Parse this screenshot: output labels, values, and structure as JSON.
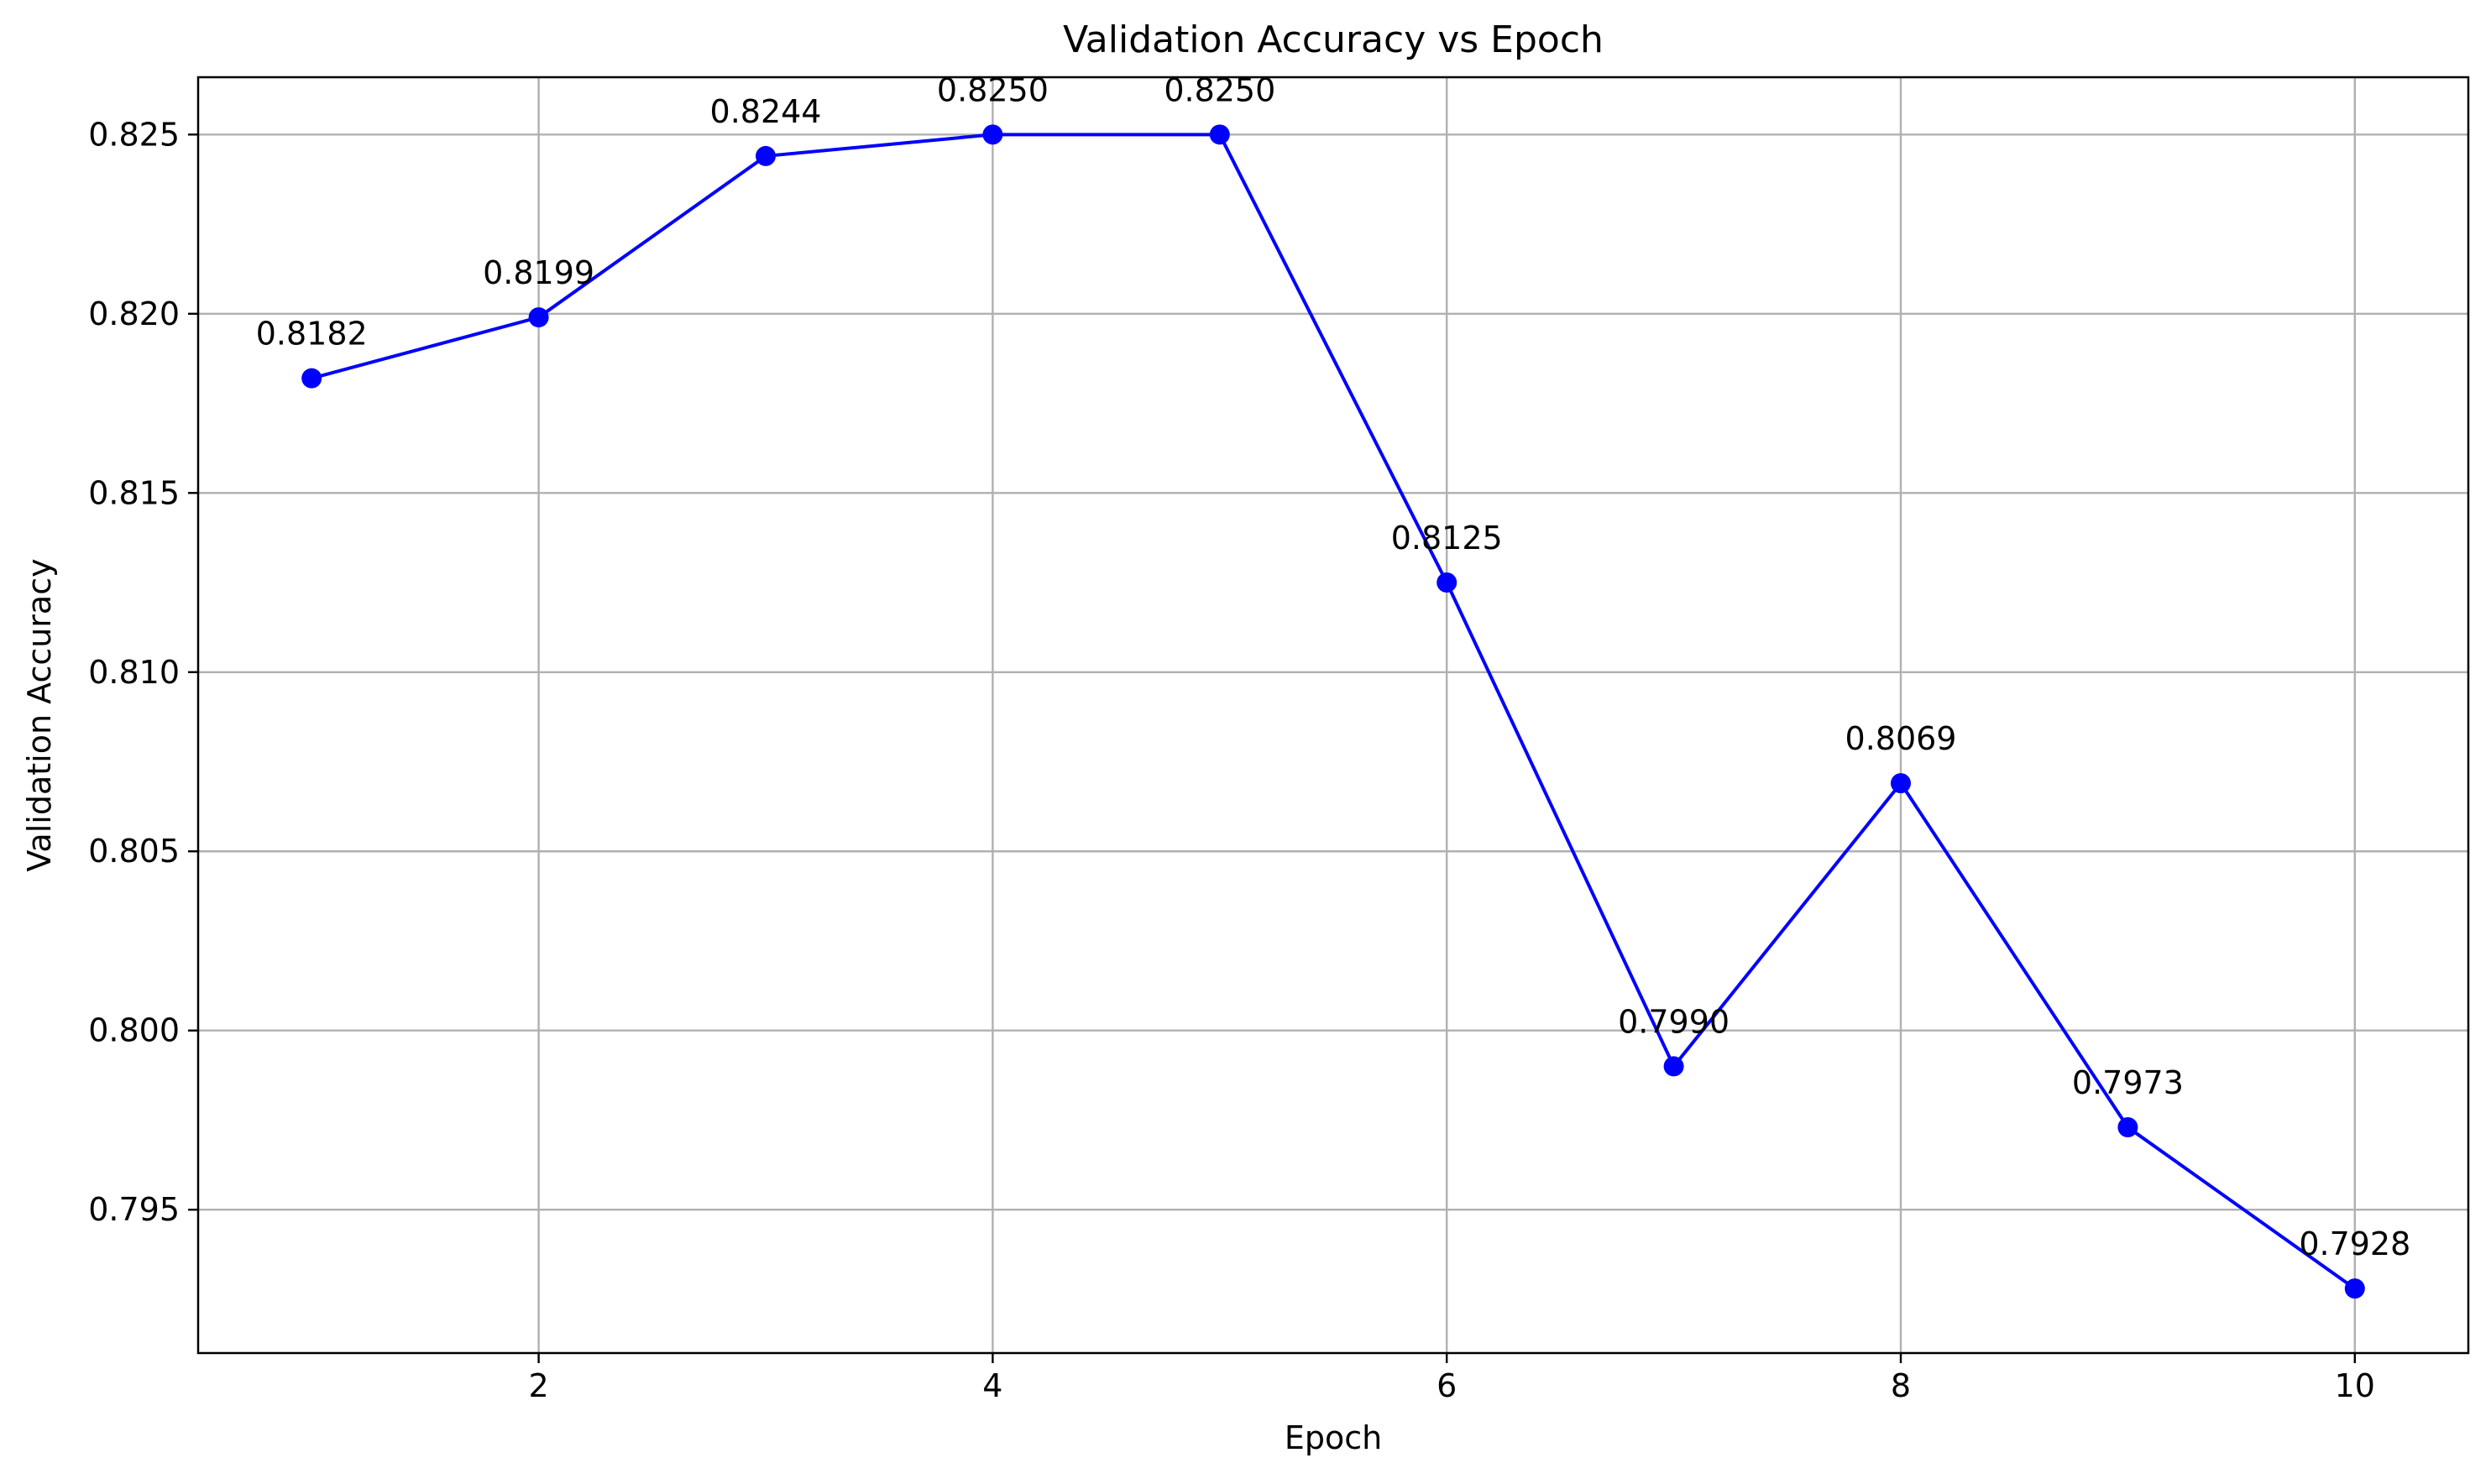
{
  "chart_data": {
    "type": "line",
    "title": "Validation Accuracy vs Epoch",
    "xlabel": "Epoch",
    "ylabel": "Validation Accuracy",
    "xlim": [
      0.5,
      10.5
    ],
    "ylim": [
      0.791,
      0.8266
    ],
    "x_ticks": [
      2,
      4,
      6,
      8,
      10
    ],
    "x_tick_labels": [
      "2",
      "4",
      "6",
      "8",
      "10"
    ],
    "y_ticks": [
      0.795,
      0.8,
      0.805,
      0.81,
      0.815,
      0.82,
      0.825
    ],
    "y_tick_labels": [
      "0.795",
      "0.800",
      "0.805",
      "0.810",
      "0.815",
      "0.820",
      "0.825"
    ],
    "grid": true,
    "legend": "none",
    "series": [
      {
        "color": "#0000ff",
        "marker": "circle",
        "x": [
          1,
          2,
          3,
          4,
          5,
          6,
          7,
          8,
          9,
          10
        ],
        "values": [
          0.8182,
          0.8199,
          0.8244,
          0.825,
          0.825,
          0.8125,
          0.799,
          0.8069,
          0.7973,
          0.7928
        ],
        "data_labels": [
          "0.8182",
          "0.8199",
          "0.8244",
          "0.8250",
          "0.8250",
          "0.8125",
          "0.7990",
          "0.8069",
          "0.7973",
          "0.7928"
        ]
      }
    ]
  }
}
